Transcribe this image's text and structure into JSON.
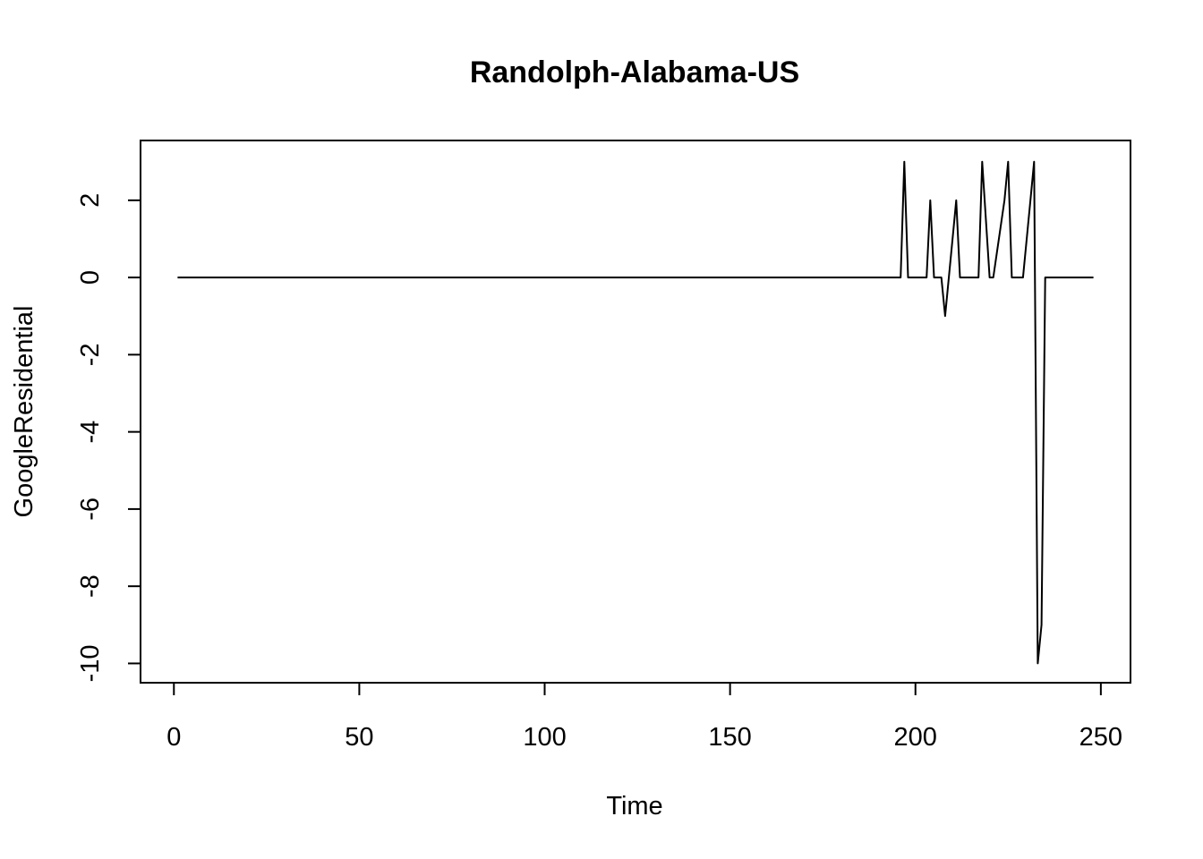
{
  "chart_data": {
    "type": "line",
    "title": "Randolph-Alabama-US",
    "xlabel": "Time",
    "ylabel": "GoogleResidential",
    "xlim": [
      -9,
      258
    ],
    "ylim": [
      -10.5,
      3.55
    ],
    "x_ticks": [
      0,
      50,
      100,
      150,
      200,
      250
    ],
    "y_ticks": [
      -10,
      -8,
      -6,
      -4,
      -2,
      0,
      2
    ],
    "grid": false,
    "legend": "none",
    "line_color": "#000000",
    "series": [
      {
        "points": [
          [
            1,
            0
          ],
          [
            196,
            0
          ],
          [
            197,
            3
          ],
          [
            198,
            0
          ],
          [
            203,
            0
          ],
          [
            204,
            2
          ],
          [
            205,
            0
          ],
          [
            207,
            0
          ],
          [
            208,
            -1
          ],
          [
            210,
            1
          ],
          [
            211,
            2
          ],
          [
            212,
            0
          ],
          [
            217,
            0
          ],
          [
            218,
            3
          ],
          [
            220,
            0
          ],
          [
            221,
            0
          ],
          [
            224,
            2
          ],
          [
            225,
            3
          ],
          [
            226,
            0
          ],
          [
            229,
            0
          ],
          [
            231,
            2
          ],
          [
            232,
            3
          ],
          [
            233,
            -10
          ],
          [
            234,
            -9
          ],
          [
            235,
            0
          ],
          [
            248,
            0
          ]
        ]
      }
    ]
  }
}
